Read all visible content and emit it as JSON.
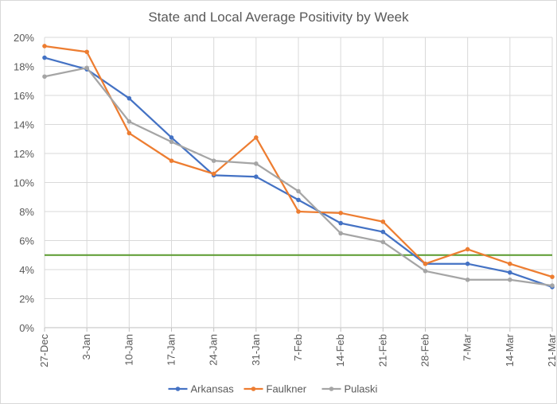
{
  "chart_data": {
    "type": "line",
    "title": "State and Local Average Positivity by Week",
    "xlabel": "",
    "ylabel": "",
    "categories": [
      "27-Dec",
      "3-Jan",
      "10-Jan",
      "17-Jan",
      "24-Jan",
      "31-Jan",
      "7-Feb",
      "14-Feb",
      "21-Feb",
      "28-Feb",
      "7-Mar",
      "14-Mar",
      "21-Mar"
    ],
    "ylim": [
      0,
      20
    ],
    "yticks": [
      "0%",
      "2%",
      "4%",
      "6%",
      "8%",
      "10%",
      "12%",
      "14%",
      "16%",
      "18%",
      "20%"
    ],
    "reference_line": {
      "value": 5,
      "color": "#5a9a2e"
    },
    "series": [
      {
        "name": "Arkansas",
        "color": "#4472c4",
        "values": [
          18.6,
          17.8,
          15.8,
          13.1,
          10.5,
          10.4,
          8.8,
          7.2,
          6.6,
          4.4,
          4.4,
          3.8,
          2.8
        ]
      },
      {
        "name": "Faulkner",
        "color": "#ed7d31",
        "values": [
          19.4,
          19.0,
          13.4,
          11.5,
          10.6,
          13.1,
          8.0,
          7.9,
          7.3,
          4.4,
          5.4,
          4.4,
          3.5
        ]
      },
      {
        "name": "Pulaski",
        "color": "#a5a5a5",
        "values": [
          17.3,
          17.9,
          14.2,
          12.8,
          11.5,
          11.3,
          9.4,
          6.5,
          5.9,
          3.9,
          3.3,
          3.3,
          2.9
        ]
      }
    ],
    "legend_position": "bottom",
    "grid": true
  }
}
